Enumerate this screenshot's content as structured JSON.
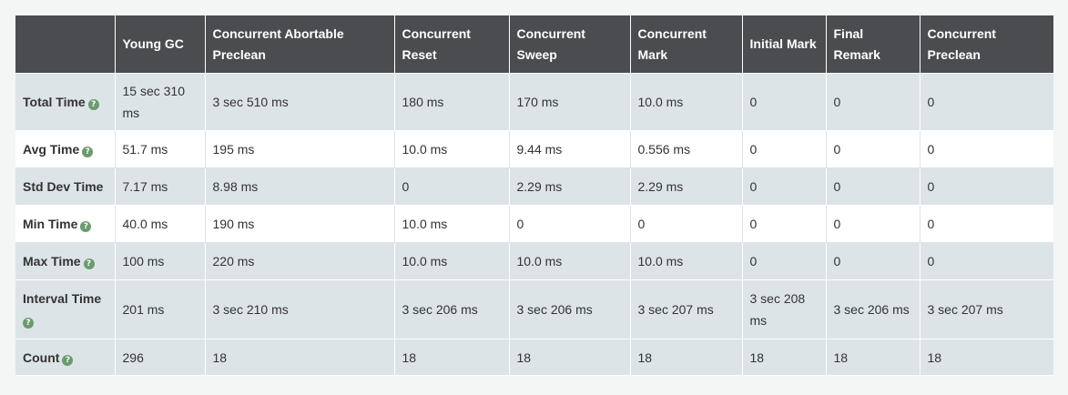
{
  "columns": [
    "",
    "Young GC",
    "Concurrent Abortable Preclean",
    "Concurrent Reset",
    "Concurrent Sweep",
    "Concurrent Mark",
    "Initial Mark",
    "Final Remark",
    "Concurrent Preclean"
  ],
  "help_icon": {
    "glyph": "?",
    "name": "help-icon",
    "color": "#6b9a70"
  },
  "colors": {
    "header_bg": "#4a4c4f",
    "header_text": "#ffffff",
    "row_shaded": "#dde4e8",
    "row_plain": "#ffffff",
    "page_bg": "#f4f5f5"
  },
  "rows": [
    {
      "label": "Total Time",
      "help": true,
      "values": [
        "15 sec 310 ms",
        "3 sec 510 ms",
        "180 ms",
        "170 ms",
        "10.0 ms",
        "0",
        "0",
        "0"
      ]
    },
    {
      "label": "Avg Time",
      "help": true,
      "values": [
        "51.7 ms",
        "195 ms",
        "10.0 ms",
        "9.44 ms",
        "0.556 ms",
        "0",
        "0",
        "0"
      ]
    },
    {
      "label": "Std Dev Time",
      "help": false,
      "values": [
        "7.17 ms",
        "8.98 ms",
        "0",
        "2.29 ms",
        "2.29 ms",
        "0",
        "0",
        "0"
      ]
    },
    {
      "label": "Min Time",
      "help": true,
      "values": [
        "40.0 ms",
        "190 ms",
        "10.0 ms",
        "0",
        "0",
        "0",
        "0",
        "0"
      ]
    },
    {
      "label": "Max Time",
      "help": true,
      "values": [
        "100 ms",
        "220 ms",
        "10.0 ms",
        "10.0 ms",
        "10.0 ms",
        "0",
        "0",
        "0"
      ]
    },
    {
      "label": "Interval Time",
      "help": true,
      "values": [
        "201 ms",
        "3 sec 210 ms",
        "3 sec 206 ms",
        "3 sec 206 ms",
        "3 sec 207 ms",
        "3 sec 208 ms",
        "3 sec 206 ms",
        "3 sec 207 ms"
      ]
    },
    {
      "label": "Count",
      "help": true,
      "values": [
        "296",
        "18",
        "18",
        "18",
        "18",
        "18",
        "18",
        "18"
      ]
    }
  ]
}
